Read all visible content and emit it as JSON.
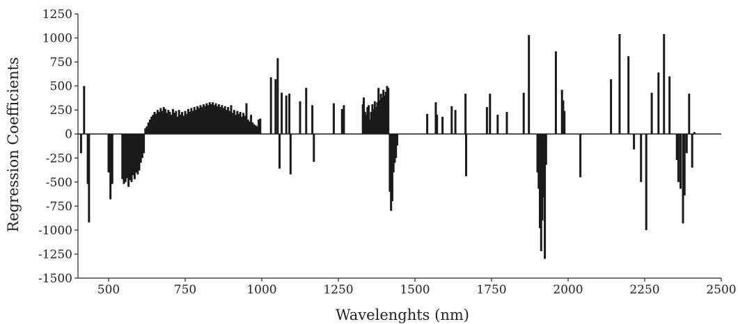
{
  "chart_data": {
    "type": "bar",
    "title": "",
    "xlabel": "Wavelenghts (nm)",
    "ylabel": "Regression Coefficients",
    "xlim": [
      400,
      2500
    ],
    "ylim": [
      -1500,
      1250
    ],
    "x_ticks": [
      500,
      750,
      1000,
      1250,
      1500,
      1750,
      2000,
      2250,
      2500
    ],
    "y_ticks": [
      1250,
      1000,
      750,
      500,
      250,
      0,
      -250,
      -500,
      -750,
      -1000,
      -1250,
      -1500
    ],
    "y_tick_labels": [
      "1250",
      "1000",
      "750",
      "500",
      "250",
      "0",
      "-250",
      "-500",
      "-750",
      "-1000",
      "-1250",
      "-1500"
    ],
    "x_tick_labels": [
      "500",
      "750",
      "1000",
      "1250",
      "1500",
      "1750",
      "2000",
      "2250",
      "2500"
    ],
    "grid": false,
    "colors": {
      "bar": "#1a1a1a",
      "axis": "#222222"
    },
    "bars": [
      {
        "x": 410,
        "y": -200
      },
      {
        "x": 420,
        "y": 500
      },
      {
        "x": 432,
        "y": -520
      },
      {
        "x": 436,
        "y": -920
      },
      {
        "x": 500,
        "y": -400
      },
      {
        "x": 506,
        "y": -680
      },
      {
        "x": 512,
        "y": -520
      },
      {
        "x": 545,
        "y": -470
      },
      {
        "x": 550,
        "y": -520
      },
      {
        "x": 555,
        "y": -500
      },
      {
        "x": 560,
        "y": -460
      },
      {
        "x": 565,
        "y": -550
      },
      {
        "x": 570,
        "y": -480
      },
      {
        "x": 575,
        "y": -500
      },
      {
        "x": 580,
        "y": -430
      },
      {
        "x": 585,
        "y": -470
      },
      {
        "x": 590,
        "y": -400
      },
      {
        "x": 595,
        "y": -420
      },
      {
        "x": 600,
        "y": -380
      },
      {
        "x": 605,
        "y": -300
      },
      {
        "x": 610,
        "y": -250
      },
      {
        "x": 615,
        "y": -200
      },
      {
        "x": 620,
        "y": 60
      },
      {
        "x": 625,
        "y": 80
      },
      {
        "x": 630,
        "y": 120
      },
      {
        "x": 635,
        "y": 150
      },
      {
        "x": 640,
        "y": 180
      },
      {
        "x": 645,
        "y": 200
      },
      {
        "x": 650,
        "y": 230
      },
      {
        "x": 655,
        "y": 210
      },
      {
        "x": 660,
        "y": 250
      },
      {
        "x": 665,
        "y": 230
      },
      {
        "x": 670,
        "y": 270
      },
      {
        "x": 675,
        "y": 240
      },
      {
        "x": 680,
        "y": 280
      },
      {
        "x": 685,
        "y": 260
      },
      {
        "x": 690,
        "y": 220
      },
      {
        "x": 695,
        "y": 250
      },
      {
        "x": 700,
        "y": 230
      },
      {
        "x": 705,
        "y": 200
      },
      {
        "x": 710,
        "y": 260
      },
      {
        "x": 715,
        "y": 220
      },
      {
        "x": 720,
        "y": 240
      },
      {
        "x": 725,
        "y": 180
      },
      {
        "x": 730,
        "y": 250
      },
      {
        "x": 735,
        "y": 200
      },
      {
        "x": 740,
        "y": 230
      },
      {
        "x": 745,
        "y": 190
      },
      {
        "x": 750,
        "y": 240
      },
      {
        "x": 755,
        "y": 210
      },
      {
        "x": 760,
        "y": 260
      },
      {
        "x": 765,
        "y": 230
      },
      {
        "x": 770,
        "y": 270
      },
      {
        "x": 775,
        "y": 240
      },
      {
        "x": 780,
        "y": 280
      },
      {
        "x": 785,
        "y": 250
      },
      {
        "x": 790,
        "y": 290
      },
      {
        "x": 795,
        "y": 270
      },
      {
        "x": 800,
        "y": 300
      },
      {
        "x": 805,
        "y": 280
      },
      {
        "x": 810,
        "y": 310
      },
      {
        "x": 815,
        "y": 290
      },
      {
        "x": 820,
        "y": 320
      },
      {
        "x": 825,
        "y": 300
      },
      {
        "x": 830,
        "y": 330
      },
      {
        "x": 835,
        "y": 310
      },
      {
        "x": 840,
        "y": 330
      },
      {
        "x": 845,
        "y": 300
      },
      {
        "x": 850,
        "y": 320
      },
      {
        "x": 855,
        "y": 290
      },
      {
        "x": 860,
        "y": 310
      },
      {
        "x": 865,
        "y": 280
      },
      {
        "x": 870,
        "y": 300
      },
      {
        "x": 875,
        "y": 270
      },
      {
        "x": 880,
        "y": 290
      },
      {
        "x": 885,
        "y": 250
      },
      {
        "x": 890,
        "y": 280
      },
      {
        "x": 895,
        "y": 240
      },
      {
        "x": 900,
        "y": 300
      },
      {
        "x": 905,
        "y": 220
      },
      {
        "x": 910,
        "y": 250
      },
      {
        "x": 915,
        "y": 200
      },
      {
        "x": 920,
        "y": 240
      },
      {
        "x": 925,
        "y": 210
      },
      {
        "x": 930,
        "y": 230
      },
      {
        "x": 935,
        "y": 180
      },
      {
        "x": 940,
        "y": 220
      },
      {
        "x": 945,
        "y": 190
      },
      {
        "x": 950,
        "y": 320
      },
      {
        "x": 955,
        "y": 150
      },
      {
        "x": 960,
        "y": 130
      },
      {
        "x": 965,
        "y": 200
      },
      {
        "x": 970,
        "y": 120
      },
      {
        "x": 975,
        "y": 100
      },
      {
        "x": 980,
        "y": 90
      },
      {
        "x": 985,
        "y": 80
      },
      {
        "x": 990,
        "y": 150
      },
      {
        "x": 995,
        "y": 160
      },
      {
        "x": 1030,
        "y": 590
      },
      {
        "x": 1045,
        "y": 570
      },
      {
        "x": 1052,
        "y": 790
      },
      {
        "x": 1058,
        "y": -360
      },
      {
        "x": 1065,
        "y": 430
      },
      {
        "x": 1080,
        "y": 400
      },
      {
        "x": 1090,
        "y": 420
      },
      {
        "x": 1094,
        "y": -420
      },
      {
        "x": 1125,
        "y": 340
      },
      {
        "x": 1145,
        "y": 480
      },
      {
        "x": 1165,
        "y": 300
      },
      {
        "x": 1170,
        "y": -290
      },
      {
        "x": 1235,
        "y": 320
      },
      {
        "x": 1262,
        "y": 260
      },
      {
        "x": 1268,
        "y": 300
      },
      {
        "x": 1330,
        "y": 310
      },
      {
        "x": 1333,
        "y": 380
      },
      {
        "x": 1337,
        "y": 230
      },
      {
        "x": 1341,
        "y": 200
      },
      {
        "x": 1345,
        "y": 280
      },
      {
        "x": 1349,
        "y": 300
      },
      {
        "x": 1353,
        "y": 150
      },
      {
        "x": 1357,
        "y": 230
      },
      {
        "x": 1361,
        "y": 310
      },
      {
        "x": 1365,
        "y": 260
      },
      {
        "x": 1369,
        "y": 340
      },
      {
        "x": 1373,
        "y": 280
      },
      {
        "x": 1377,
        "y": 330
      },
      {
        "x": 1381,
        "y": 480
      },
      {
        "x": 1385,
        "y": 350
      },
      {
        "x": 1389,
        "y": 420
      },
      {
        "x": 1393,
        "y": 380
      },
      {
        "x": 1397,
        "y": 460
      },
      {
        "x": 1401,
        "y": 400
      },
      {
        "x": 1405,
        "y": 440
      },
      {
        "x": 1409,
        "y": 500
      },
      {
        "x": 1413,
        "y": 480
      },
      {
        "x": 1418,
        "y": -600
      },
      {
        "x": 1422,
        "y": -800
      },
      {
        "x": 1426,
        "y": -700
      },
      {
        "x": 1430,
        "y": -400
      },
      {
        "x": 1434,
        "y": -300
      },
      {
        "x": 1438,
        "y": -250
      },
      {
        "x": 1442,
        "y": -120
      },
      {
        "x": 1540,
        "y": 210
      },
      {
        "x": 1568,
        "y": 330
      },
      {
        "x": 1572,
        "y": 200
      },
      {
        "x": 1590,
        "y": 180
      },
      {
        "x": 1620,
        "y": 290
      },
      {
        "x": 1632,
        "y": 250
      },
      {
        "x": 1665,
        "y": 420
      },
      {
        "x": 1667,
        "y": -440
      },
      {
        "x": 1735,
        "y": 280
      },
      {
        "x": 1745,
        "y": 420
      },
      {
        "x": 1770,
        "y": 200
      },
      {
        "x": 1800,
        "y": 230
      },
      {
        "x": 1855,
        "y": 430
      },
      {
        "x": 1872,
        "y": 1030
      },
      {
        "x": 1900,
        "y": -400
      },
      {
        "x": 1904,
        "y": -570
      },
      {
        "x": 1908,
        "y": -980
      },
      {
        "x": 1912,
        "y": -1220
      },
      {
        "x": 1916,
        "y": -900
      },
      {
        "x": 1920,
        "y": -660
      },
      {
        "x": 1924,
        "y": -1300
      },
      {
        "x": 1928,
        "y": -320
      },
      {
        "x": 1960,
        "y": 860
      },
      {
        "x": 1980,
        "y": 460
      },
      {
        "x": 1984,
        "y": 350
      },
      {
        "x": 1988,
        "y": 240
      },
      {
        "x": 2040,
        "y": -450
      },
      {
        "x": 2140,
        "y": 570
      },
      {
        "x": 2168,
        "y": 1040
      },
      {
        "x": 2197,
        "y": 810
      },
      {
        "x": 2215,
        "y": -160
      },
      {
        "x": 2238,
        "y": -500
      },
      {
        "x": 2255,
        "y": -1000
      },
      {
        "x": 2273,
        "y": 430
      },
      {
        "x": 2295,
        "y": 640
      },
      {
        "x": 2313,
        "y": 1040
      },
      {
        "x": 2331,
        "y": 600
      },
      {
        "x": 2355,
        "y": -270
      },
      {
        "x": 2360,
        "y": -500
      },
      {
        "x": 2367,
        "y": -570
      },
      {
        "x": 2375,
        "y": -930
      },
      {
        "x": 2380,
        "y": -640
      },
      {
        "x": 2387,
        "y": -200
      },
      {
        "x": 2395,
        "y": 420
      },
      {
        "x": 2405,
        "y": -350
      },
      {
        "x": 2412,
        "y": 20
      }
    ]
  }
}
